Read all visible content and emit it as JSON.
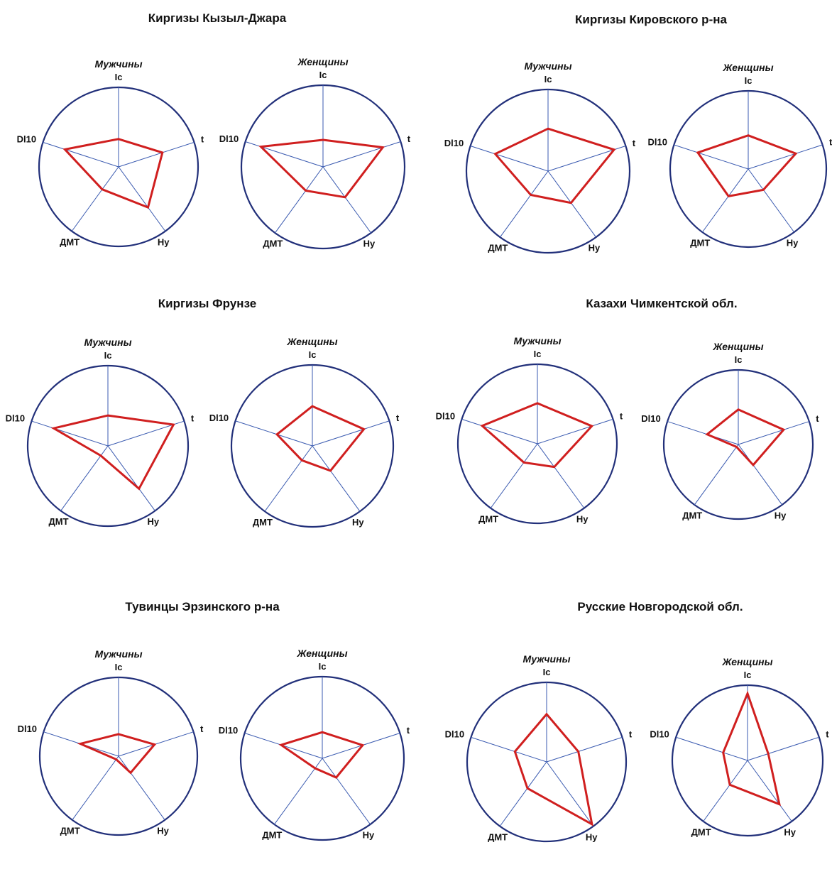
{
  "chart_data": {
    "type": "radar",
    "axes": [
      "Ic",
      "t",
      "Hy",
      "ДМТ",
      "Dl10"
    ],
    "groups": [
      {
        "title": "Киргизы Кызыл-Джара",
        "charts": [
          {
            "label": "Мужчины",
            "values": [
              0.35,
              0.58,
              0.63,
              0.35,
              0.71
            ]
          },
          {
            "label": "Женщины",
            "values": [
              0.33,
              0.77,
              0.46,
              0.36,
              0.8
            ]
          }
        ]
      },
      {
        "title": "Киргизы Кировского р-на",
        "charts": [
          {
            "label": "Мужчины",
            "values": [
              0.52,
              0.85,
              0.48,
              0.36,
              0.68
            ]
          },
          {
            "label": "Женщины",
            "values": [
              0.43,
              0.64,
              0.33,
              0.43,
              0.68
            ]
          }
        ]
      },
      {
        "title": "Киргизы Фрунзе",
        "charts": [
          {
            "label": "Мужчины",
            "values": [
              0.38,
              0.86,
              0.66,
              0.15,
              0.71
            ]
          },
          {
            "label": "Женщины",
            "values": [
              0.49,
              0.67,
              0.38,
              0.22,
              0.46
            ]
          }
        ]
      },
      {
        "title": "Казахи Чимкентской обл.",
        "charts": [
          {
            "label": "Мужчины",
            "values": [
              0.51,
              0.72,
              0.36,
              0.29,
              0.73
            ]
          },
          {
            "label": "Женщины",
            "values": [
              0.47,
              0.64,
              0.34,
              0.04,
              0.44
            ]
          }
        ]
      },
      {
        "title": "Тувинцы Эрзинского р-на",
        "charts": [
          {
            "label": "Мужчины",
            "values": [
              0.28,
              0.48,
              0.26,
              0.05,
              0.51
            ]
          },
          {
            "label": "Женщины",
            "values": [
              0.32,
              0.52,
              0.29,
              0.15,
              0.53
            ]
          }
        ]
      },
      {
        "title": "Русские Новгородской обл.",
        "charts": [
          {
            "label": "Мужчины",
            "values": [
              0.6,
              0.42,
              0.97,
              0.41,
              0.42
            ]
          },
          {
            "label": "Женщины",
            "values": [
              0.89,
              0.29,
              0.72,
              0.4,
              0.34
            ]
          }
        ]
      }
    ],
    "colors": {
      "outline": "#22307a",
      "axis": "#3a5ab0",
      "series": "#d01f1f"
    },
    "grid": false,
    "legend": "none"
  }
}
